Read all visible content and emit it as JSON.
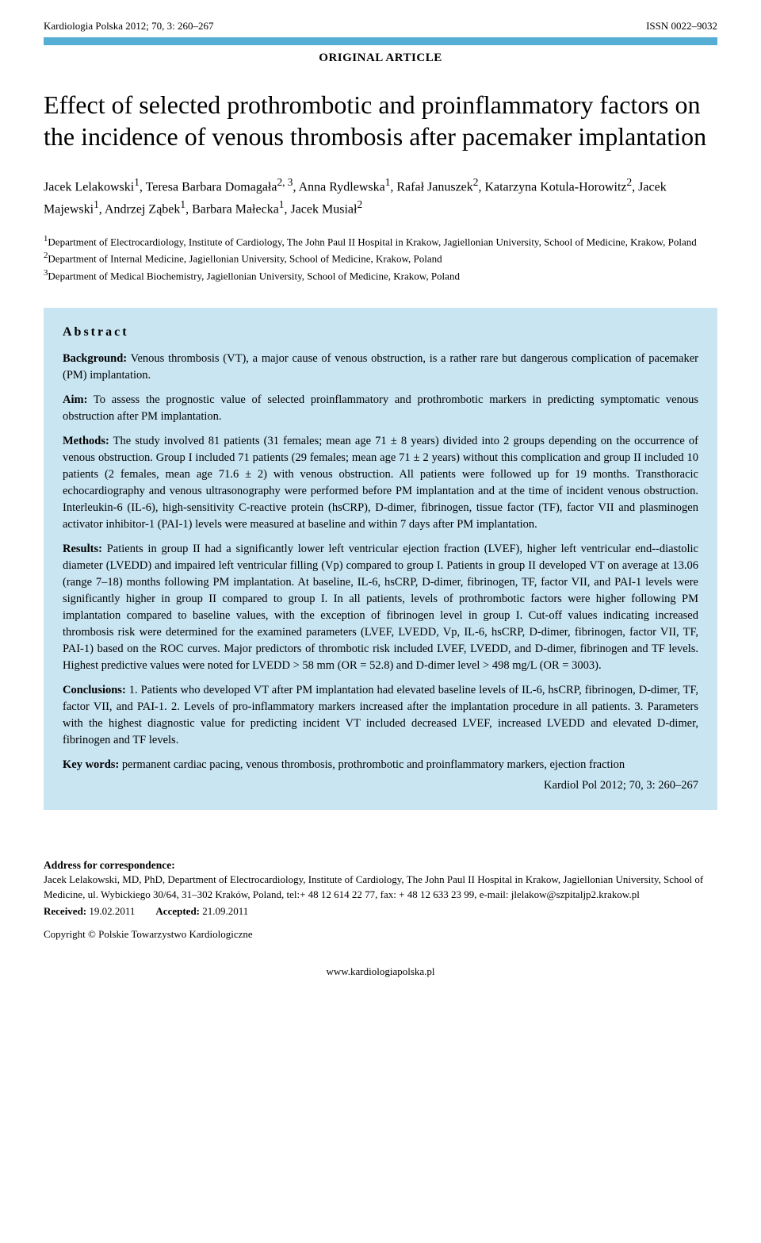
{
  "header": {
    "left": "Kardiologia Polska 2012; 70, 3: 260–267",
    "right": "ISSN 0022–9032"
  },
  "article_type": "ORIGINAL ARTICLE",
  "title": "Effect of selected prothrombotic and proinflammatory factors on the incidence of venous thrombosis after pacemaker implantation",
  "authors_html": "Jacek Lelakowski<sup>1</sup>, Teresa Barbara Domagała<sup>2, 3</sup>, Anna Rydlewska<sup>1</sup>, Rafał Januszek<sup>2</sup>, Katarzyna Kotula-Horowitz<sup>2</sup>, Jacek Majewski<sup>1</sup>, Andrzej Ząbek<sup>1</sup>, Barbara Małecka<sup>1</sup>, Jacek Musiał<sup>2</sup>",
  "affiliations": [
    "<sup>1</sup>Department of Electrocardiology, Institute of Cardiology, The John Paul II Hospital in Krakow, Jagiellonian University, School of Medicine, Krakow, Poland",
    "<sup>2</sup>Department of Internal Medicine, Jagiellonian University, School of Medicine, Krakow, Poland",
    "<sup>3</sup>Department of Medical Biochemistry, Jagiellonian University, School of Medicine, Krakow, Poland"
  ],
  "abstract": {
    "heading": "Abstract",
    "background_label": "Background:",
    "background": " Venous thrombosis (VT), a major cause of venous obstruction, is a rather rare but dangerous complication of pacemaker (PM) implantation.",
    "aim_label": "Aim:",
    "aim": " To assess the prognostic value of selected proinflammatory and prothrombotic markers in predicting symptomatic venous obstruction after PM implantation.",
    "methods_label": "Methods:",
    "methods": " The study involved 81 patients (31 females; mean age 71 ± 8 years) divided into 2 groups depending on the occurrence of venous obstruction. Group I included 71 patients (29 females; mean age 71 ± 2 years) without this complication and group II included 10 patients (2 females, mean age 71.6 ± 2) with venous obstruction. All patients were followed up for 19 months. Transthoracic echocardiography and venous ultrasonography were performed before PM implantation and at the time of incident venous obstruction. Interleukin-6 (IL-6), high-sensitivity C-reactive protein (hsCRP), D-dimer, fibrinogen, tissue factor (TF), factor VII and plasminogen activator inhibitor-1 (PAI-1) levels were measured at baseline and within 7 days after PM implantation.",
    "results_label": "Results:",
    "results": " Patients in group II had a significantly lower left ventricular ejection fraction (LVEF), higher left ventricular end--diastolic diameter (LVEDD) and impaired left ventricular filling (Vp) compared to group I. Patients in group II developed VT on average at 13.06 (range 7–18) months following PM implantation. At baseline, IL-6, hsCRP, D-dimer, fibrinogen, TF, factor VII, and PAI-1 levels were significantly higher in group II compared to group I. In all patients, levels of prothrombotic factors were higher following PM implantation compared to baseline values, with the exception of fibrinogen level in group I. Cut-off values indicating increased thrombosis risk were determined for the examined parameters (LVEF, LVEDD, Vp, IL-6, hsCRP, D-dimer, fibrinogen, factor VII, TF, PAI-1) based on the ROC curves. Major predictors of thrombotic risk included LVEF, LVEDD, and D-dimer, fibrinogen and TF levels. Highest predictive values were noted for LVEDD > 58 mm (OR = 52.8) and D-dimer level > 498 mg/L (OR = 3003).",
    "conclusions_label": "Conclusions:",
    "conclusions": " 1. Patients who developed VT after PM implantation had elevated baseline levels of IL-6, hsCRP, fibrinogen, D-dimer, TF, factor VII, and PAI-1. 2. Levels of pro-inflammatory markers increased after the implantation procedure in all patients. 3. Parameters with the highest diagnostic value for predicting incident VT included decreased LVEF, increased LVEDD and elevated D-dimer, fibrinogen and TF levels.",
    "keywords_label": "Key words:",
    "keywords": " permanent cardiac pacing, venous thrombosis, prothrombotic and proinflammatory markers, ejection fraction",
    "citation": "Kardiol Pol 2012; 70, 3: 260–267"
  },
  "footer": {
    "heading": "Address for correspondence:",
    "body": "Jacek Lelakowski, MD, PhD, Department of Electrocardiology, Institute of Cardiology, The John Paul II Hospital in Krakow, Jagiellonian University, School of Medicine, ul. Wybickiego 30/64, 31–302 Kraków, Poland, tel:+ 48 12 614 22 77, fax: + 48 12 633 23 99, e-mail: jlelakow@szpitaljp2.krakow.pl",
    "received_label": "Received:",
    "received": " 19.02.2011",
    "accepted_label": "Accepted:",
    "accepted": " 21.09.2011",
    "copyright": "Copyright © Polskie Towarzystwo Kardiologiczne",
    "url": "www.kardiologiapolska.pl"
  },
  "colors": {
    "banner": "#57aed4",
    "abstract_bg": "#c9e5f2",
    "text": "#000000",
    "background": "#ffffff"
  }
}
